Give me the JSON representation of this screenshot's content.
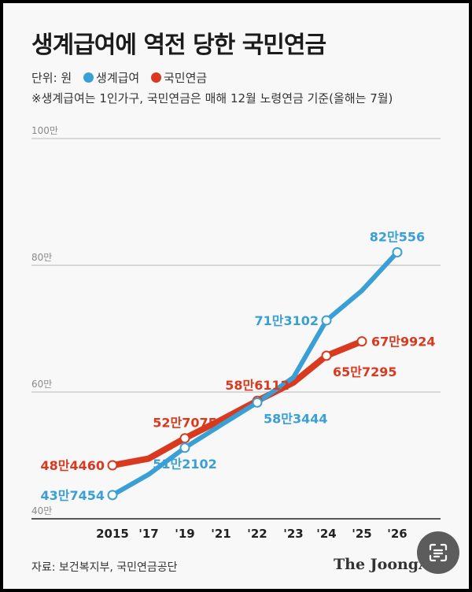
{
  "title": "생계급여에 역전 당한 국민연금",
  "legend": {
    "unit": "단위: 원",
    "items": [
      {
        "label": "생계급여",
        "color": "#3a9fd5"
      },
      {
        "label": "국민연금",
        "color": "#d8391f"
      }
    ]
  },
  "note": "※생계급여는 1인가구, 국민연금은 매해 12월 노령연금 기준(올해는 7월)",
  "source": "자료: 보건복지부, 국민연금공단",
  "logo": "The JoongA",
  "chart_data": {
    "type": "line",
    "x": [
      "2015",
      "'17",
      "'19",
      "'21",
      "'22",
      "'23",
      "'24",
      "'25",
      "'26"
    ],
    "yticks": [
      "40만",
      "60만",
      "80만",
      "100만"
    ],
    "ytick_values": [
      400000,
      600000,
      800000,
      1000000
    ],
    "ylim": [
      400000,
      1000000
    ],
    "grid": true,
    "series": [
      {
        "name": "생계급여",
        "color": "#3a9fd5",
        "values": [
          437454,
          470000,
          512102,
          548000,
          583444,
          623000,
          713102,
          760000,
          820556
        ],
        "point_labels": [
          {
            "index": 0,
            "text": "43만7454",
            "anchor": "end"
          },
          {
            "index": 2,
            "text": "51만2102",
            "anchor": "middle",
            "pos": "below"
          },
          {
            "index": 4,
            "text": "58만3444",
            "anchor": "start",
            "pos": "below"
          },
          {
            "index": 6,
            "text": "71만3102",
            "anchor": "end"
          },
          {
            "index": 8,
            "text": "82만556",
            "anchor": "middle",
            "pos": "above"
          }
        ]
      },
      {
        "name": "국민연금",
        "color": "#d8391f",
        "values": [
          484460,
          495000,
          527075,
          556000,
          586112,
          615000,
          657295,
          679924,
          null
        ],
        "point_labels": [
          {
            "index": 0,
            "text": "48만4460",
            "anchor": "end"
          },
          {
            "index": 2,
            "text": "52만7075",
            "anchor": "middle",
            "pos": "above"
          },
          {
            "index": 4,
            "text": "58만6112",
            "anchor": "middle",
            "pos": "above"
          },
          {
            "index": 6,
            "text": "65만7295",
            "anchor": "start",
            "pos": "below"
          },
          {
            "index": 7,
            "text": "67만9924",
            "anchor": "start"
          }
        ]
      }
    ]
  }
}
